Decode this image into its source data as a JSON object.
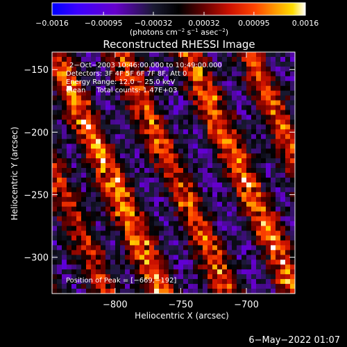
{
  "chart_data": {
    "type": "heatmap",
    "title": "Reconstructed RHESSI Image",
    "xlabel": "Heliocentric X (arcsec)",
    "ylabel": "Heliocentric Y (arcsec)",
    "xlim": [
      -848,
      -663
    ],
    "ylim": [
      -329,
      -136
    ],
    "x_ticks": [
      -800,
      -750,
      -700
    ],
    "y_ticks": [
      -150,
      -200,
      -250,
      -300
    ],
    "x_tick_labels": [
      "−800",
      "−750",
      "−700"
    ],
    "y_tick_labels": [
      "−150",
      "−200",
      "−250",
      "−300"
    ],
    "colorbar": {
      "min": -0.0016,
      "max": 0.0016,
      "ticks": [
        -0.0016,
        -0.00095,
        -0.00032,
        0.00032,
        0.00095,
        0.0016
      ],
      "tick_labels": [
        "−0.0016",
        "−0.00095",
        "−0.00032",
        "0.00032",
        "0.00095",
        "0.0016"
      ],
      "unit_prefix": "(photons cm",
      "unit_exp1": "−2",
      "unit_mid": " s",
      "unit_exp2": "−1",
      "unit_mid2": " asec",
      "unit_exp3": "−2",
      "unit_suffix": ")",
      "colormap": [
        "#0000ff",
        "#3c00ff",
        "#6600cc",
        "#1a1a33",
        "#000000",
        "#660000",
        "#cc1100",
        "#ff4400",
        "#ff9900",
        "#ffdd00",
        "#ffffff"
      ]
    },
    "annotations": [
      "2−Oct−2003 10:46:00.000 to 10:49:00.000",
      "Detectors: 3F 4F 5F 6F 7F 8F, Att 0",
      "Energy Range: 12.0 − 25.0 keV",
      "Clean     Total counts: 1.47E+03"
    ],
    "peak_label": "Position of Peak = [−669,−192]",
    "peak": [
      -669,
      -192
    ]
  },
  "footer": {
    "date": "6−May−2022 01:07"
  }
}
